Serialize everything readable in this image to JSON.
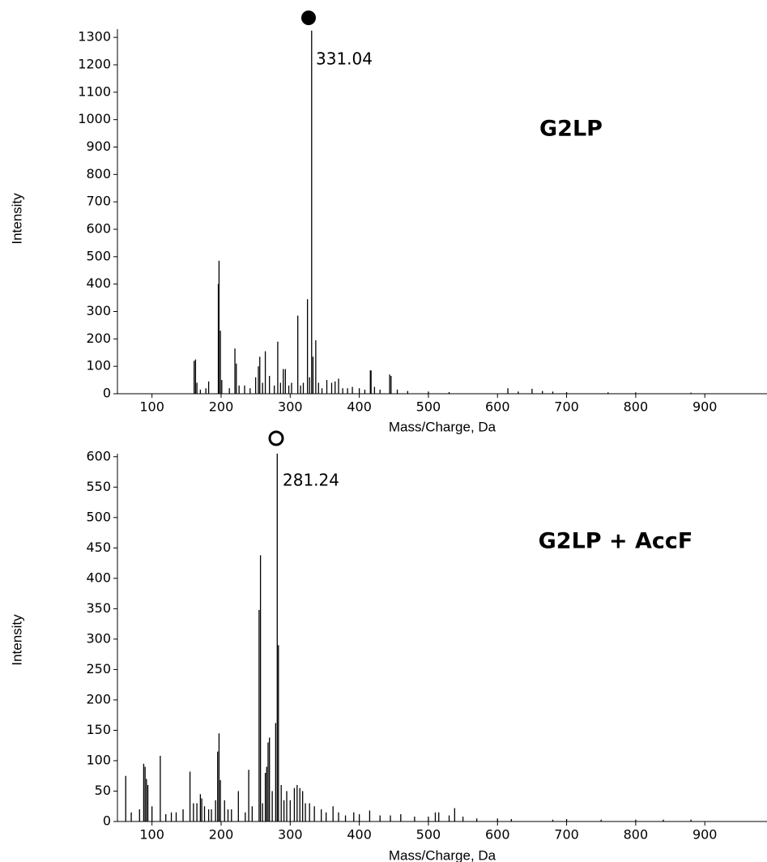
{
  "chart_data": [
    {
      "type": "stem",
      "title": "G2LP",
      "peak_label": "331.04",
      "xlabel": "Mass/Charge, Da",
      "ylabel": "Intensity",
      "color": "#000000",
      "xlim": [
        50,
        990
      ],
      "ylim": [
        0,
        1330
      ],
      "xticks": [
        100,
        200,
        300,
        400,
        500,
        600,
        700,
        800,
        900
      ],
      "yticks": [
        0,
        100,
        200,
        300,
        400,
        500,
        600,
        700,
        800,
        900,
        1000,
        1100,
        1200,
        1300
      ],
      "x": [
        161,
        163,
        165,
        170,
        178,
        182,
        196,
        197,
        199,
        201,
        212,
        220,
        222,
        226,
        234,
        242,
        250,
        254,
        256,
        260,
        264,
        270,
        277,
        282,
        286,
        290,
        293,
        298,
        302,
        311,
        315,
        319,
        325,
        328,
        331.04,
        333,
        337,
        341,
        346,
        353,
        360,
        365,
        370,
        376,
        383,
        390,
        400,
        408,
        416,
        417,
        422,
        430,
        444,
        446,
        455,
        470,
        500,
        530,
        615,
        630,
        650,
        665,
        680,
        700,
        760,
        800,
        880
      ],
      "values": [
        120,
        125,
        40,
        15,
        20,
        45,
        400,
        485,
        230,
        50,
        20,
        165,
        110,
        30,
        30,
        20,
        60,
        100,
        135,
        40,
        155,
        65,
        30,
        190,
        40,
        90,
        90,
        30,
        40,
        285,
        30,
        40,
        345,
        60,
        1325,
        135,
        195,
        40,
        20,
        50,
        40,
        45,
        55,
        20,
        20,
        25,
        20,
        15,
        85,
        85,
        25,
        15,
        70,
        65,
        15,
        10,
        8,
        6,
        20,
        8,
        18,
        10,
        8,
        6,
        5,
        5,
        4
      ]
    },
    {
      "type": "stem",
      "title": "G2LP + AccF",
      "peak_label": "281.24",
      "xlabel": "Mass/Charge, Da",
      "ylabel": "Intensity",
      "color": "#000000",
      "xlim": [
        50,
        990
      ],
      "ylim": [
        0,
        605
      ],
      "xticks": [
        100,
        200,
        300,
        400,
        500,
        600,
        700,
        800,
        900
      ],
      "yticks": [
        0,
        50,
        100,
        150,
        200,
        250,
        300,
        350,
        400,
        450,
        500,
        550,
        600
      ],
      "x": [
        62,
        70,
        82,
        88,
        90,
        92,
        94,
        100,
        112,
        120,
        128,
        135,
        145,
        155,
        160,
        165,
        170,
        172,
        176,
        182,
        186,
        192,
        195,
        197,
        199,
        205,
        210,
        215,
        225,
        235,
        240,
        245,
        255,
        257,
        260,
        264,
        266,
        268,
        270,
        274,
        279,
        281.24,
        283,
        287,
        291,
        295,
        300,
        306,
        310,
        314,
        318,
        322,
        328,
        335,
        345,
        352,
        362,
        370,
        380,
        392,
        400,
        415,
        430,
        445,
        460,
        480,
        500,
        510,
        515,
        530,
        538,
        550,
        570,
        600,
        620,
        680,
        700,
        750,
        800,
        840,
        880
      ],
      "values": [
        75,
        15,
        20,
        95,
        90,
        70,
        60,
        25,
        108,
        12,
        15,
        15,
        20,
        82,
        30,
        30,
        45,
        38,
        25,
        20,
        20,
        35,
        115,
        145,
        68,
        35,
        20,
        20,
        50,
        15,
        85,
        25,
        348,
        438,
        30,
        80,
        90,
        130,
        138,
        50,
        162,
        605,
        290,
        60,
        35,
        50,
        35,
        55,
        60,
        55,
        50,
        30,
        30,
        25,
        20,
        15,
        25,
        15,
        10,
        15,
        12,
        18,
        10,
        10,
        12,
        8,
        8,
        15,
        15,
        10,
        22,
        8,
        5,
        5,
        4,
        3,
        4,
        3,
        3,
        3,
        3
      ]
    }
  ]
}
